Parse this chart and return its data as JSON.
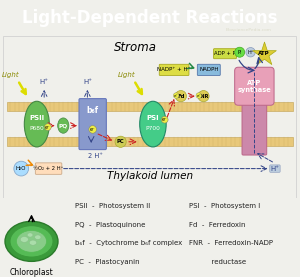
{
  "title": "Light-Dependent Reactions",
  "title_bg": "#7b8c56",
  "title_color": "white",
  "title_fontsize": 12,
  "bg_color": "#f0f0eb",
  "diagram_bg": "white",
  "stroma_label": "Stroma",
  "thylakoid_label": "Thylakoid lumen",
  "membrane_color": "#e8c87a",
  "psii_color": "#66bb55",
  "psi_color": "#44cc88",
  "bf_color": "#8899cc",
  "atp_top_color": "#e8a0b8",
  "atp_bot_color": "#cc88aa",
  "pc_color": "#cccc55",
  "fd_color": "#ddcc55",
  "fnr_color": "#ddcc55",
  "pq_color": "#55bb55",
  "h2o_color": "#aaddff",
  "o2_color": "#ffddbb",
  "adp_color": "#ccdd44",
  "pi_color": "#66dd44",
  "atp_label_color": "#dddd44",
  "nadp_color": "#dddd44",
  "nadph_color": "#88bbdd",
  "electron_color": "#eeee44",
  "arrow_blue": "#334488",
  "arrow_red": "#cc2222",
  "arrow_green": "#228844",
  "arrow_orange": "#ee8800",
  "arrow_yellow": "#cccc00",
  "legend_left": [
    "PSII  -  Photosystem II",
    "PQ  -  Plastoquinone",
    "b₆f  -  Cytochrome b₆f complex",
    "PC  -  Plastocyanin"
  ],
  "legend_right_lines": [
    "PSI  -  Photosystem I",
    "Fd  -  Ferredoxin",
    "FNR  -  Ferredoxin-NADP",
    "          reductase"
  ],
  "chloroplast_label": "Chloroplast",
  "watermark": "BiosciencePedia.com"
}
